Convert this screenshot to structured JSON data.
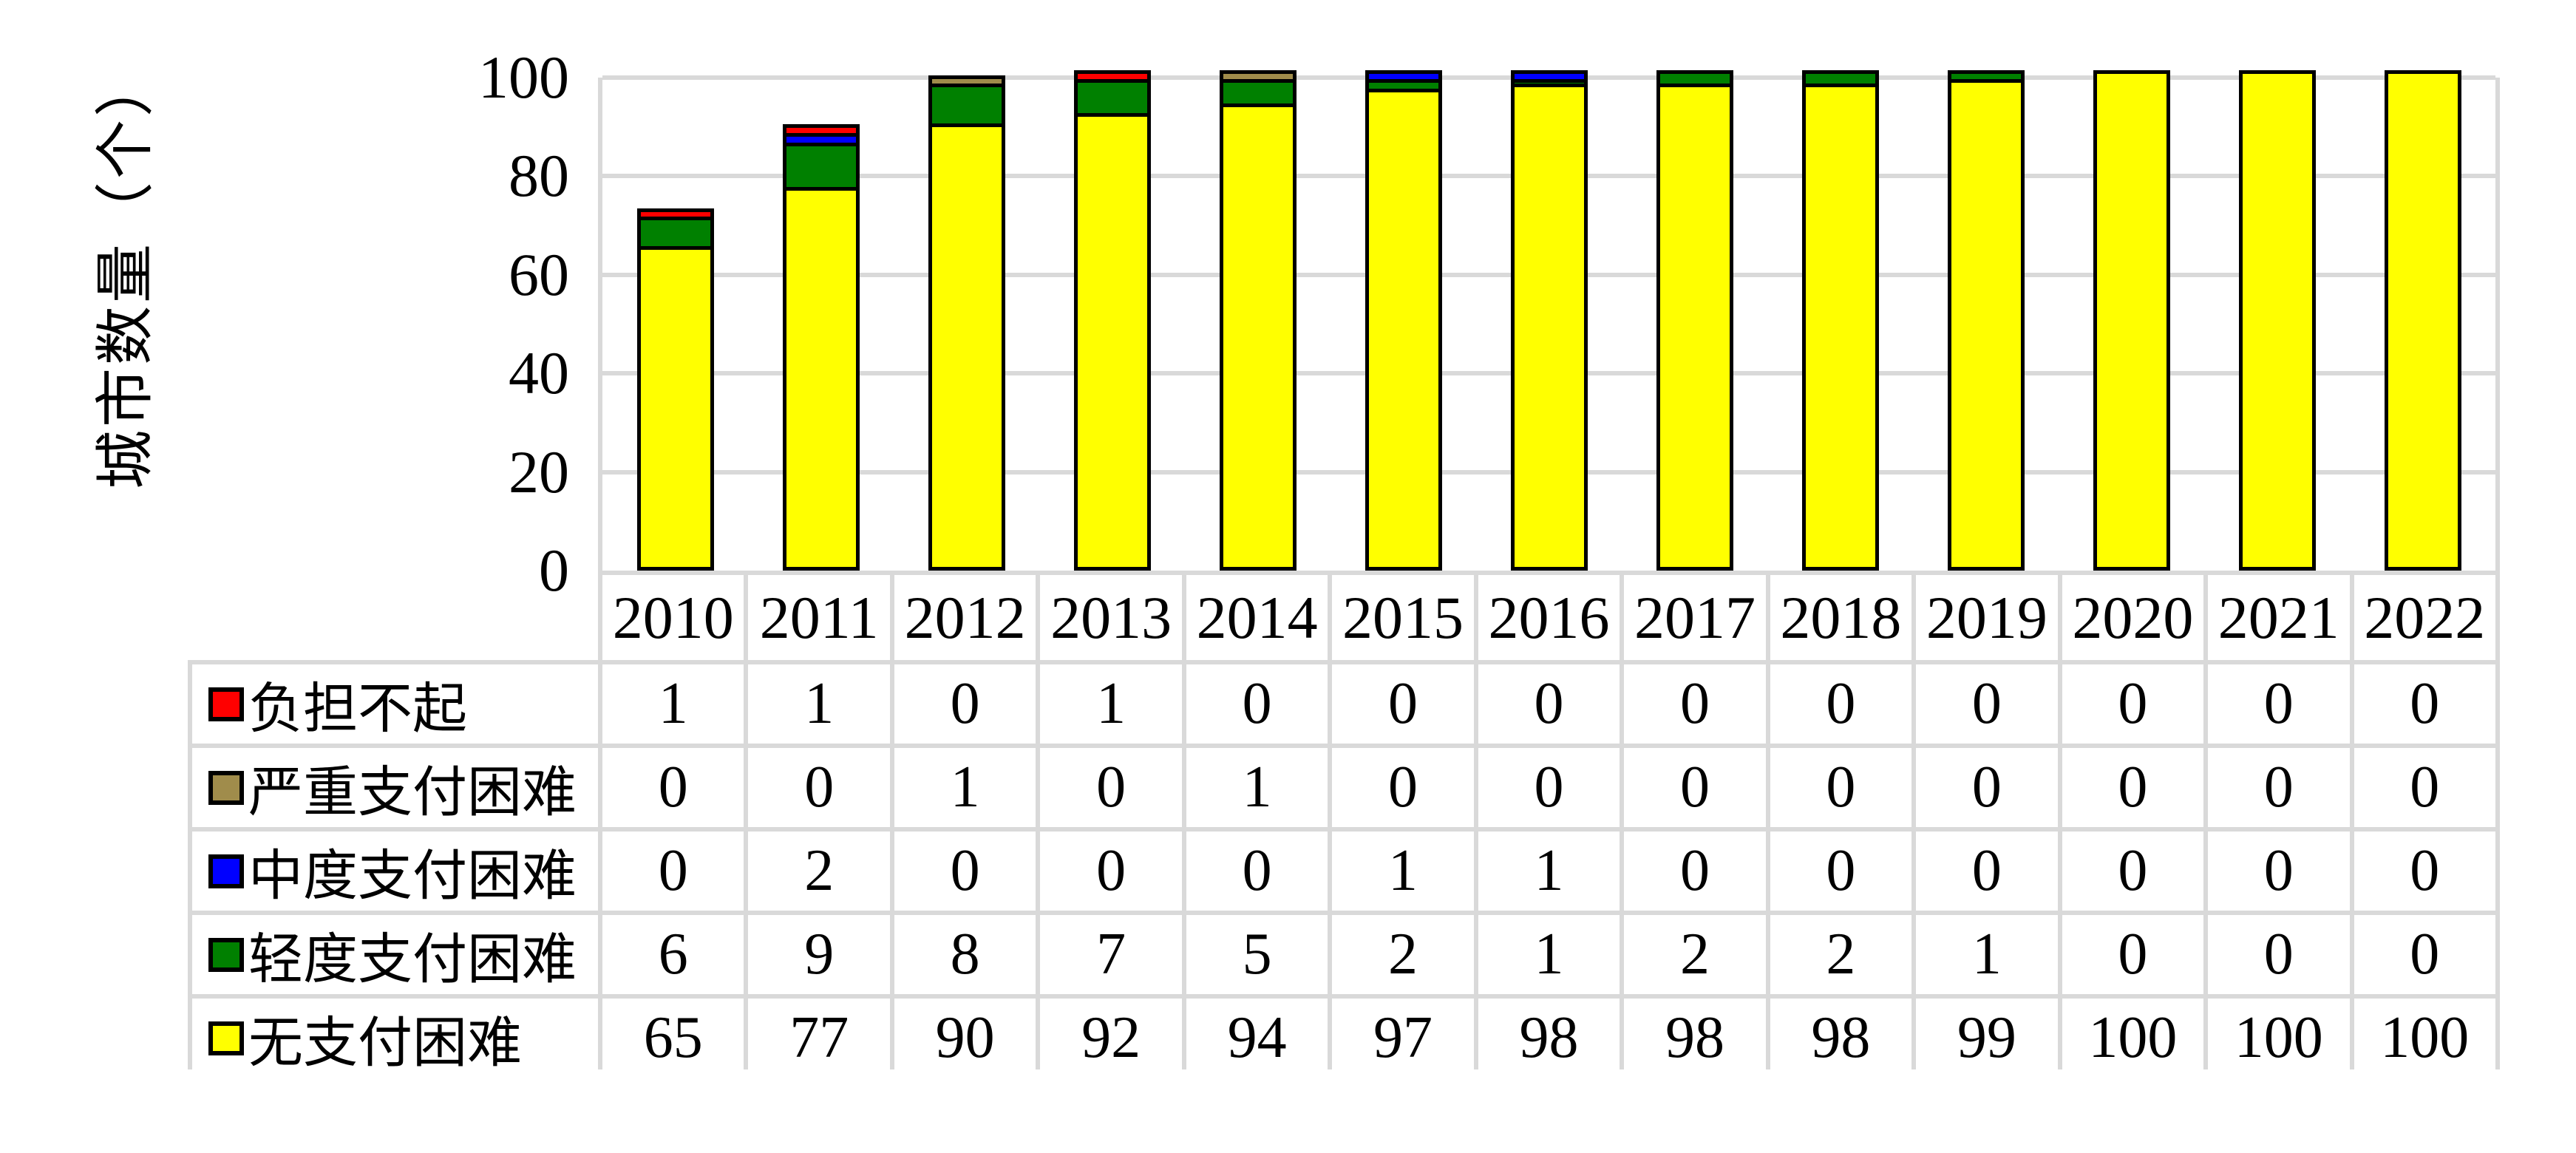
{
  "chart_data": {
    "type": "bar",
    "stacked": true,
    "title": "",
    "xlabel": "",
    "ylabel": "城市数量（个）",
    "categories": [
      "2010",
      "2011",
      "2012",
      "2013",
      "2014",
      "2015",
      "2016",
      "2017",
      "2018",
      "2019",
      "2020",
      "2021",
      "2022"
    ],
    "yticks": [
      0,
      20,
      40,
      60,
      80,
      100
    ],
    "ylim": [
      0,
      100
    ],
    "grid": true,
    "legend_position": "table-left-of-rows",
    "series": [
      {
        "name": "负担不起",
        "color": "#FF0000",
        "values": [
          1,
          1,
          0,
          1,
          0,
          0,
          0,
          0,
          0,
          0,
          0,
          0,
          0
        ]
      },
      {
        "name": "严重支付困难",
        "color": "#A08C4B",
        "values": [
          0,
          0,
          1,
          0,
          1,
          0,
          0,
          0,
          0,
          0,
          0,
          0,
          0
        ]
      },
      {
        "name": "中度支付困难",
        "color": "#0000FF",
        "values": [
          0,
          2,
          0,
          0,
          0,
          1,
          1,
          0,
          0,
          0,
          0,
          0,
          0
        ]
      },
      {
        "name": "轻度支付困难",
        "color": "#008000",
        "values": [
          6,
          9,
          8,
          7,
          5,
          2,
          1,
          2,
          2,
          1,
          0,
          0,
          0
        ]
      },
      {
        "name": "无支付困难",
        "color": "#FFFF00",
        "values": [
          65,
          77,
          90,
          92,
          94,
          97,
          98,
          98,
          98,
          99,
          100,
          100,
          100
        ]
      }
    ],
    "colors": {
      "bar_border": "#000000",
      "grid_line": "#D9D9D9",
      "table_border": "#D9D9D9",
      "text": "#000000",
      "background": "#FFFFFF"
    }
  }
}
